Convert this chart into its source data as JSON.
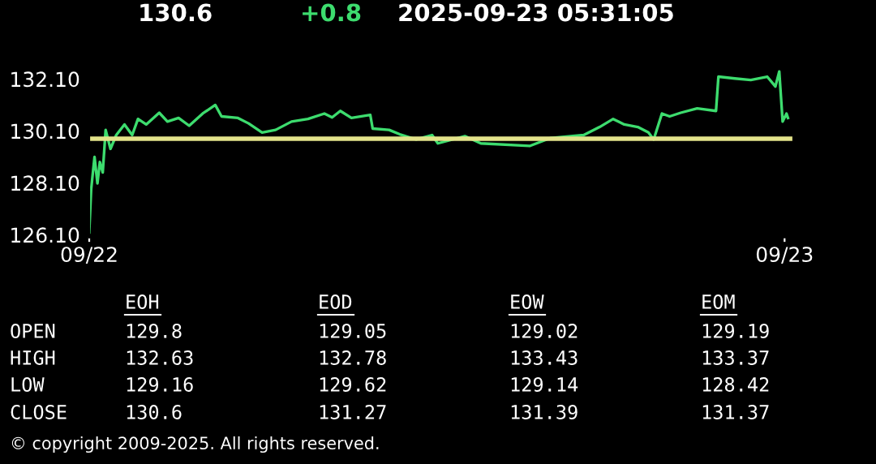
{
  "chart_data": [
    {
      "type": "line",
      "title": "130.6",
      "subtitle": "+0.8",
      "annotations": [
        "2025-09-23 05:31:05"
      ],
      "xlim": [
        "2025-09-22T00:00",
        "2025-09-23T00:18"
      ],
      "xticks": [
        {
          "value": "2025-09-22T00:00",
          "label": "09/22"
        },
        {
          "value": "2025-09-23T00:00",
          "label": "09/23"
        }
      ],
      "ylim": [
        126.0,
        132.6
      ],
      "yticks": [
        {
          "value": 126.1,
          "label": "126.10"
        },
        {
          "value": 128.1,
          "label": "128.10"
        },
        {
          "value": 130.1,
          "label": "130.10"
        },
        {
          "value": 132.1,
          "label": "132.10"
        }
      ],
      "grid": false,
      "legend": false,
      "ref_lines": [
        {
          "axis": "y",
          "value": 129.8,
          "color": "#e3e38a"
        }
      ],
      "series": [
        {
          "color": "#3ddc6e",
          "x": [
            "2025-09-22T00:00",
            "2025-09-22T00:04",
            "2025-09-22T00:11",
            "2025-09-22T00:17",
            "2025-09-22T00:22",
            "2025-09-22T00:28",
            "2025-09-22T00:34",
            "2025-09-22T00:44",
            "2025-09-22T00:56",
            "2025-09-22T01:13",
            "2025-09-22T01:29",
            "2025-09-22T01:41",
            "2025-09-22T01:58",
            "2025-09-22T02:25",
            "2025-09-22T02:42",
            "2025-09-22T03:05",
            "2025-09-22T03:27",
            "2025-09-22T03:55",
            "2025-09-22T04:21",
            "2025-09-22T04:34",
            "2025-09-22T05:08",
            "2025-09-22T05:30",
            "2025-09-22T05:58",
            "2025-09-22T06:26",
            "2025-09-22T06:59",
            "2025-09-22T07:33",
            "2025-09-22T08:07",
            "2025-09-22T08:23",
            "2025-09-22T08:40",
            "2025-09-22T09:03",
            "2025-09-22T09:42",
            "2025-09-22T09:47",
            "2025-09-22T10:21",
            "2025-09-22T10:43",
            "2025-09-22T11:17",
            "2025-09-22T11:50",
            "2025-09-22T12:02",
            "2025-09-22T12:58",
            "2025-09-22T13:31",
            "2025-09-22T15:12",
            "2025-09-22T15:56",
            "2025-09-22T17:04",
            "2025-09-22T17:37",
            "2025-09-22T18:05",
            "2025-09-22T18:28",
            "2025-09-22T18:56",
            "2025-09-22T19:18",
            "2025-09-22T19:29",
            "2025-09-22T19:46",
            "2025-09-22T20:02",
            "2025-09-22T20:25",
            "2025-09-22T20:59",
            "2025-09-22T21:38",
            "2025-09-22T21:43",
            "2025-09-22T22:17",
            "2025-09-22T22:50",
            "2025-09-22T23:24",
            "2025-09-22T23:41",
            "2025-09-22T23:49",
            "2025-09-22T23:56",
            "2025-09-23T00:04",
            "2025-09-23T00:07"
          ],
          "values": [
            126.19,
            127.85,
            129.1,
            128.08,
            128.9,
            128.5,
            130.14,
            129.41,
            129.94,
            130.35,
            129.94,
            130.56,
            130.35,
            130.8,
            130.46,
            130.6,
            130.3,
            130.77,
            131.1,
            130.66,
            130.6,
            130.39,
            130.04,
            130.14,
            130.46,
            130.56,
            130.77,
            130.62,
            130.87,
            130.6,
            130.72,
            130.19,
            130.14,
            129.97,
            129.77,
            129.94,
            129.62,
            129.9,
            129.62,
            129.52,
            129.83,
            129.94,
            130.25,
            130.56,
            130.35,
            130.25,
            130.04,
            129.77,
            130.77,
            130.66,
            130.8,
            130.97,
            130.87,
            132.19,
            132.12,
            132.06,
            132.19,
            131.81,
            132.39,
            130.46,
            130.77,
            130.6
          ]
        }
      ]
    },
    {
      "type": "other",
      "categories": [
        "EOH",
        "EOD",
        "EOW",
        "EOM"
      ],
      "y_categories": [
        "OPEN",
        "HIGH",
        "LOW",
        "CLOSE"
      ],
      "cells": [
        [
          "129.8",
          "129.05",
          "129.02",
          "129.19"
        ],
        [
          "132.63",
          "132.78",
          "133.43",
          "133.37"
        ],
        [
          "129.16",
          "129.62",
          "129.14",
          "128.42"
        ],
        [
          "130.6",
          "131.27",
          "131.39",
          "131.37"
        ]
      ],
      "annotations": [
        "© copyright 2009-2025. All rights reserved."
      ]
    }
  ]
}
